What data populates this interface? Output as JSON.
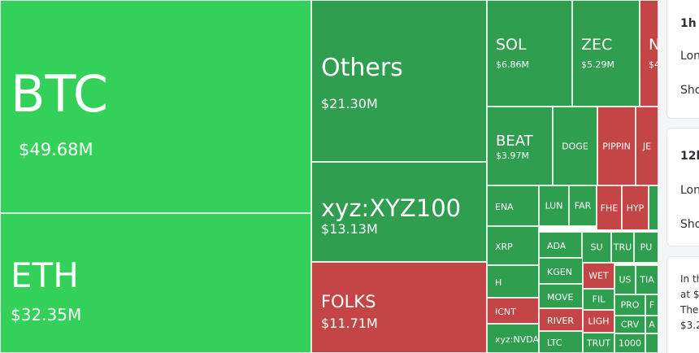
{
  "colors": {
    "up_bright": "#33d15a",
    "up": "#2f9e4f",
    "down": "#c44545"
  },
  "tiles": [
    {
      "symbol": "BTC",
      "value": "$49.68M",
      "trend": "up_bright"
    },
    {
      "symbol": "ETH",
      "value": "$32.35M",
      "trend": "up_bright"
    },
    {
      "symbol": "Others",
      "value": "$21.30M",
      "trend": "up"
    },
    {
      "symbol": "xyz:XYZ100",
      "value": "$13.13M",
      "trend": "up"
    },
    {
      "symbol": "FOLKS",
      "value": "$11.71M",
      "trend": "down"
    },
    {
      "symbol": "SOL",
      "value": "$6.86M",
      "trend": "up"
    },
    {
      "symbol": "ZEC",
      "value": "$5.29M",
      "trend": "up"
    },
    {
      "symbol": "N",
      "value": "$4",
      "trend": "down"
    },
    {
      "symbol": "BEAT",
      "value": "$3.97M",
      "trend": "up"
    },
    {
      "symbol": "DOGE",
      "value": "",
      "trend": "up"
    },
    {
      "symbol": "PIPPIN",
      "value": "",
      "trend": "down"
    },
    {
      "symbol": "JE",
      "value": "",
      "trend": "down"
    },
    {
      "symbol": "",
      "value": "",
      "trend": "up"
    },
    {
      "symbol": "ENA",
      "value": "",
      "trend": "up"
    },
    {
      "symbol": "LUN",
      "value": "",
      "trend": "up"
    },
    {
      "symbol": "FAR",
      "value": "",
      "trend": "up"
    },
    {
      "symbol": "FHE",
      "value": "",
      "trend": "down"
    },
    {
      "symbol": "HYP",
      "value": "",
      "trend": "down"
    },
    {
      "symbol": "",
      "value": "",
      "trend": "up"
    },
    {
      "symbol": "XRP",
      "value": "",
      "trend": "up"
    },
    {
      "symbol": "ADA",
      "value": "",
      "trend": "up"
    },
    {
      "symbol": "SU",
      "value": "",
      "trend": "up"
    },
    {
      "symbol": "TRU",
      "value": "",
      "trend": "up"
    },
    {
      "symbol": "PU",
      "value": "",
      "trend": "up"
    },
    {
      "symbol": "KGEN",
      "value": "",
      "trend": "up"
    },
    {
      "symbol": "H",
      "value": "",
      "trend": "up"
    },
    {
      "symbol": "WET",
      "value": "",
      "trend": "down"
    },
    {
      "symbol": "US",
      "value": "",
      "trend": "up"
    },
    {
      "symbol": "TIA",
      "value": "",
      "trend": "up"
    },
    {
      "symbol": "MOVE",
      "value": "",
      "trend": "up"
    },
    {
      "symbol": "FIL",
      "value": "",
      "trend": "up"
    },
    {
      "symbol": "PRO",
      "value": "",
      "trend": "up"
    },
    {
      "symbol": "F",
      "value": "",
      "trend": "up"
    },
    {
      "symbol": "ICNT",
      "value": "",
      "trend": "down"
    },
    {
      "symbol": "RIVER",
      "value": "",
      "trend": "down"
    },
    {
      "symbol": "LIGH",
      "value": "",
      "trend": "down"
    },
    {
      "symbol": "CRV",
      "value": "",
      "trend": "up"
    },
    {
      "symbol": "A",
      "value": "",
      "trend": "up"
    },
    {
      "symbol": "xyz:NVDA",
      "value": "",
      "trend": "up"
    },
    {
      "symbol": "LTC",
      "value": "",
      "trend": "up"
    },
    {
      "symbol": "TRUT",
      "value": "",
      "trend": "up"
    },
    {
      "symbol": "1000",
      "value": "",
      "trend": "up"
    },
    {
      "symbol": "",
      "value": "",
      "trend": "up"
    }
  ],
  "side_panel": {
    "cards": [
      {
        "title": "1h",
        "long_label": "Lon",
        "short_label": "Sho"
      },
      {
        "title": "12h",
        "long_label": "Lon",
        "short_label": "Sho"
      }
    ],
    "info_lines": [
      "In th",
      "at $",
      "The",
      "$3.2"
    ]
  }
}
